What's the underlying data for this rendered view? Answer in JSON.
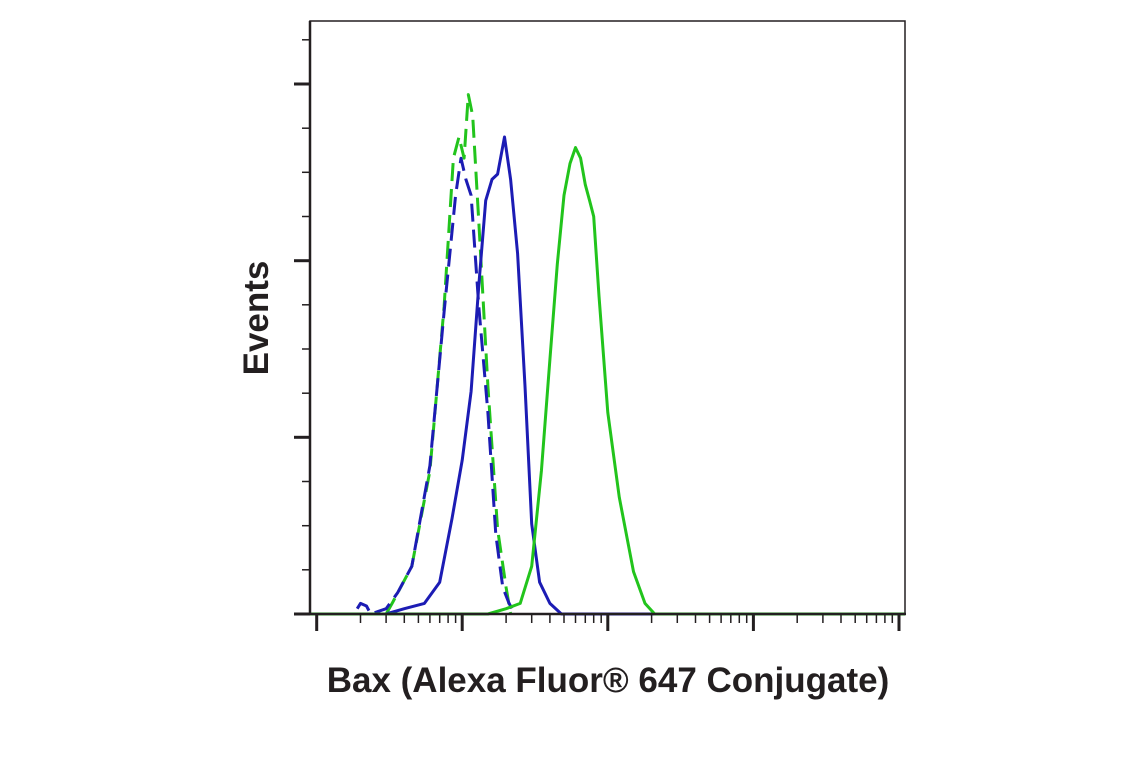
{
  "chart_data": {
    "type": "line",
    "title": "",
    "xlabel": "Bax (Alexa Fluor® 647 Conjugate)",
    "ylabel": "Events",
    "x_scale": "log",
    "xlim": [
      0.9,
      11000
    ],
    "ylim": [
      0,
      1.0
    ],
    "grid": false,
    "legend": "none",
    "colors": {
      "green": "#22c41c",
      "blue": "#1c1cb4",
      "axis": "#231f20"
    },
    "series": [
      {
        "color": "#22c41c",
        "dash": "dashed",
        "points": [
          [
            3,
            0.0
          ],
          [
            3.3,
            0.02
          ],
          [
            4.5,
            0.09
          ],
          [
            6,
            0.27
          ],
          [
            7.5,
            0.58
          ],
          [
            8.7,
            0.86
          ],
          [
            9.5,
            0.9
          ],
          [
            10.3,
            0.86
          ],
          [
            11,
            0.98
          ],
          [
            11.8,
            0.94
          ],
          [
            13,
            0.74
          ],
          [
            15,
            0.43
          ],
          [
            17.5,
            0.16
          ],
          [
            20,
            0.05
          ],
          [
            21.5,
            0.0
          ]
        ]
      },
      {
        "color": "#1c1cb4",
        "dash": "dashed",
        "points": [
          [
            1.9,
            0.01
          ],
          [
            2.0,
            0.02
          ],
          [
            2.2,
            0.015
          ],
          [
            2.35,
            0.0
          ],
          [
            3,
            0.01
          ],
          [
            3.6,
            0.04
          ],
          [
            4.5,
            0.09
          ],
          [
            6,
            0.28
          ],
          [
            7.5,
            0.57
          ],
          [
            9,
            0.79
          ],
          [
            9.8,
            0.86
          ],
          [
            10.6,
            0.82
          ],
          [
            11.5,
            0.79
          ],
          [
            13,
            0.58
          ],
          [
            15,
            0.38
          ],
          [
            17,
            0.15
          ],
          [
            19,
            0.05
          ],
          [
            21,
            0.02
          ],
          [
            23,
            0.0
          ]
        ]
      },
      {
        "color": "#1c1cb4",
        "dash": "solid",
        "points": [
          [
            0.9,
            0.0
          ],
          [
            3,
            0.0
          ],
          [
            4,
            0.01
          ],
          [
            5.5,
            0.02
          ],
          [
            7,
            0.06
          ],
          [
            8.5,
            0.18
          ],
          [
            10,
            0.29
          ],
          [
            11.5,
            0.42
          ],
          [
            13,
            0.62
          ],
          [
            14.5,
            0.78
          ],
          [
            16,
            0.82
          ],
          [
            17.5,
            0.83
          ],
          [
            19.5,
            0.9
          ],
          [
            21.5,
            0.82
          ],
          [
            24,
            0.68
          ],
          [
            27,
            0.43
          ],
          [
            30,
            0.17
          ],
          [
            34,
            0.06
          ],
          [
            40,
            0.02
          ],
          [
            48,
            0.0
          ],
          [
            100,
            0.0
          ],
          [
            11000,
            0.0
          ]
        ]
      },
      {
        "color": "#22c41c",
        "dash": "solid",
        "points": [
          [
            0.9,
            0.0
          ],
          [
            15,
            0.0
          ],
          [
            20,
            0.01
          ],
          [
            25,
            0.02
          ],
          [
            30,
            0.09
          ],
          [
            35,
            0.27
          ],
          [
            40,
            0.48
          ],
          [
            45,
            0.66
          ],
          [
            50,
            0.79
          ],
          [
            55,
            0.85
          ],
          [
            60,
            0.88
          ],
          [
            65,
            0.86
          ],
          [
            70,
            0.81
          ],
          [
            75,
            0.78
          ],
          [
            80,
            0.75
          ],
          [
            87,
            0.6
          ],
          [
            100,
            0.38
          ],
          [
            120,
            0.22
          ],
          [
            150,
            0.08
          ],
          [
            180,
            0.02
          ],
          [
            210,
            0.0
          ],
          [
            11000,
            0.0
          ]
        ]
      }
    ]
  }
}
